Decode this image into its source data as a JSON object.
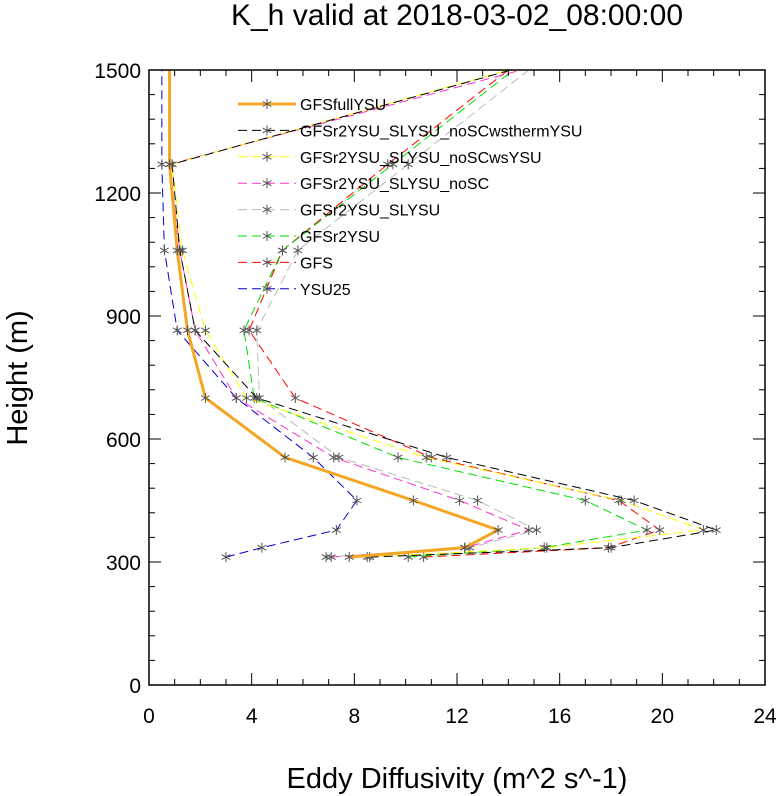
{
  "chart_data": {
    "type": "line",
    "title": "K_h valid at 2018-03-02_08:00:00",
    "xlabel": "Eddy Diffusivity (m^2 s^-1)",
    "ylabel": "Height (m)",
    "xlim": [
      0,
      24
    ],
    "ylim": [
      0,
      1500
    ],
    "xticks": [
      "0",
      "4",
      "8",
      "12",
      "16",
      "20",
      "24"
    ],
    "yticks": [
      "0",
      "300",
      "600",
      "900",
      "1200",
      "1500"
    ],
    "legend_position": "top-center",
    "series": [
      {
        "name": "GFSfullYSU",
        "color": "#f5a623",
        "width": 3,
        "dash": "",
        "marker_last_only": false,
        "points": [
          [
            7.8,
            312
          ],
          [
            12.3,
            335
          ],
          [
            13.6,
            378
          ],
          [
            10.3,
            450
          ],
          [
            5.3,
            555
          ],
          [
            2.2,
            700
          ],
          [
            1.5,
            865
          ],
          [
            1.1,
            1060
          ],
          [
            0.8,
            1270
          ],
          [
            0.8,
            1500
          ]
        ]
      },
      {
        "name": "GFSr2YSU_SLYSU_noSCwsthermYSU",
        "color": "#000000",
        "width": 1,
        "dash": "9,5",
        "points": [
          [
            8.6,
            312
          ],
          [
            18.0,
            335
          ],
          [
            22.1,
            378
          ],
          [
            18.9,
            450
          ],
          [
            11.6,
            555
          ],
          [
            4.2,
            700
          ],
          [
            1.8,
            865
          ],
          [
            1.2,
            1060
          ],
          [
            0.9,
            1270
          ],
          [
            14.1,
            1500
          ]
        ]
      },
      {
        "name": "GFSr2YSU_SLYSU_noSCwsYSU",
        "color": "#ffff00",
        "width": 1,
        "dash": "9,5",
        "points": [
          [
            8.5,
            312
          ],
          [
            15.5,
            335
          ],
          [
            21.6,
            378
          ],
          [
            18.4,
            450
          ],
          [
            10.8,
            555
          ],
          [
            3.8,
            700
          ],
          [
            2.2,
            865
          ],
          [
            1.3,
            1060
          ],
          [
            0.9,
            1270
          ],
          [
            14.0,
            1500
          ]
        ]
      },
      {
        "name": "GFSr2YSU_SLYSU_noSC",
        "color": "#ff33cc",
        "width": 1,
        "dash": "9,5",
        "points": [
          [
            7.1,
            312
          ],
          [
            12.3,
            335
          ],
          [
            14.8,
            378
          ],
          [
            12.1,
            450
          ],
          [
            7.2,
            555
          ],
          [
            3.4,
            700
          ],
          [
            1.8,
            865
          ],
          [
            1.2,
            1060
          ],
          [
            0.8,
            1270
          ],
          [
            14.5,
            1500
          ]
        ]
      },
      {
        "name": "GFSr2YSU_SLYSU",
        "color": "#bbbbbb",
        "width": 1,
        "dash": "9,5",
        "points": [
          [
            6.9,
            312
          ],
          [
            12.5,
            335
          ],
          [
            15.1,
            378
          ],
          [
            12.8,
            450
          ],
          [
            7.4,
            555
          ],
          [
            4.3,
            700
          ],
          [
            4.2,
            865
          ],
          [
            5.8,
            1060
          ],
          [
            10.1,
            1270
          ],
          [
            14.8,
            1500
          ]
        ]
      },
      {
        "name": "GFSr2YSU",
        "color": "#00dd00",
        "width": 1,
        "dash": "9,5",
        "points": [
          [
            10.1,
            312
          ],
          [
            15.4,
            335
          ],
          [
            19.4,
            378
          ],
          [
            17.0,
            450
          ],
          [
            9.7,
            555
          ],
          [
            4.1,
            700
          ],
          [
            3.7,
            865
          ],
          [
            5.2,
            1060
          ],
          [
            9.5,
            1270
          ],
          [
            14.2,
            1500
          ]
        ]
      },
      {
        "name": "GFS",
        "color": "#ff0000",
        "width": 1,
        "dash": "9,5",
        "points": [
          [
            10.7,
            312
          ],
          [
            17.9,
            335
          ],
          [
            19.9,
            378
          ],
          [
            18.3,
            450
          ],
          [
            11.0,
            555
          ],
          [
            5.7,
            700
          ],
          [
            3.9,
            865
          ],
          [
            5.2,
            1060
          ],
          [
            9.3,
            1270
          ],
          [
            14.0,
            1500
          ]
        ]
      },
      {
        "name": "YSU25",
        "color": "#0000cc",
        "width": 1,
        "dash": "9,5",
        "points": [
          [
            3.0,
            312
          ],
          [
            4.4,
            335
          ],
          [
            7.3,
            378
          ],
          [
            8.1,
            450
          ],
          [
            6.4,
            555
          ],
          [
            3.4,
            700
          ],
          [
            1.1,
            865
          ],
          [
            0.6,
            1060
          ],
          [
            0.5,
            1270
          ],
          [
            0.5,
            1500
          ]
        ]
      }
    ]
  }
}
